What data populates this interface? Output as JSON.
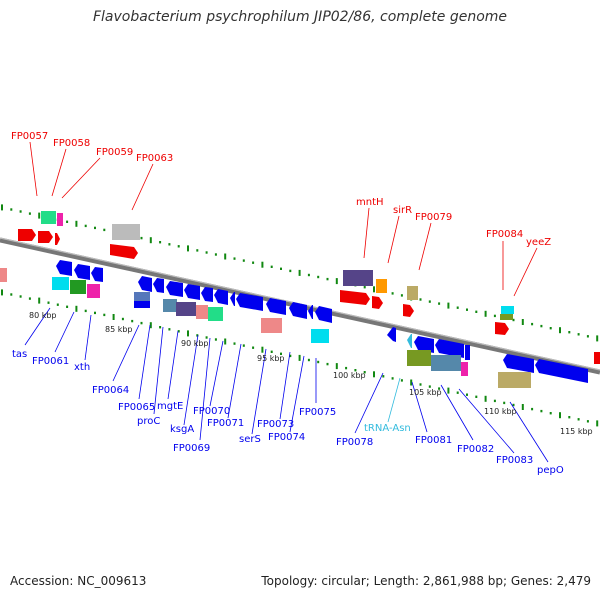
{
  "title": "Flavobacterium psychrophilum JIP02/86, complete genome",
  "footer": {
    "accession": "Accession: NC_009613",
    "summary": "Topology: circular; Length: 2,861,988 bp; Genes: 2,479"
  },
  "scale": {
    "ticks": [
      "80 kbp",
      "85 kbp",
      "90 kbp",
      "95 kbp",
      "100 kbp",
      "105 kbp",
      "110 kbp",
      "115 kbp"
    ]
  },
  "labels_top": [
    "FP0057",
    "FP0058",
    "FP0059",
    "FP0063",
    "mntH",
    "sirR",
    "FP0079",
    "FP0084",
    "yeeZ"
  ],
  "labels_bottom": [
    "tas",
    "FP0061",
    "xth",
    "FP0064",
    "FP0065",
    "proC",
    "mgtE",
    "ksgA",
    "FP0069",
    "FP0070",
    "FP0071",
    "serS",
    "FP0073",
    "FP0074",
    "FP0075",
    "FP0078",
    "tRNA-Asn",
    "FP0081",
    "FP0082",
    "FP0083",
    "pepO"
  ],
  "colors": {
    "forward_gene": "#ee0000",
    "reverse_gene": "#0000ee",
    "trna": "#33bbdd",
    "axis": "#888888",
    "tick": "#118811"
  }
}
